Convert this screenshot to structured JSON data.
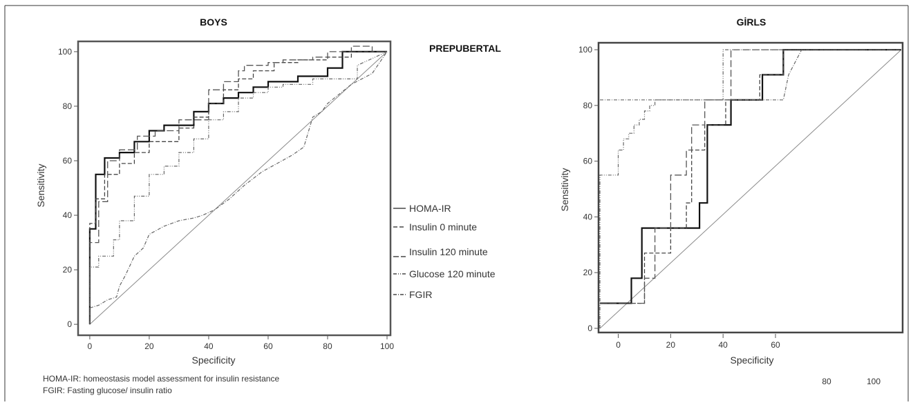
{
  "figure": {
    "center_label": "PREPUBERTAL",
    "footnotes": [
      "HOMA-IR: homeostasis model assessment for insulin resistance",
      "FGIR: Fasting glucose/ insulin ratio"
    ],
    "stray_ticks": [
      "80",
      "100"
    ],
    "legend": [
      {
        "label": "HOMA-IR",
        "dash": "solid"
      },
      {
        "label": "Insulin 0 minute",
        "dash": "dashed"
      },
      {
        "label": "Insulin 120 minute",
        "dash": "long-dashed"
      },
      {
        "label": "Glucose 120 minute",
        "dash": "dash-dot-dot"
      },
      {
        "label": "FGIR",
        "dash": "dash-dot"
      }
    ]
  },
  "chart_data": [
    {
      "type": "line",
      "title": "BOYS",
      "xlabel": "Specificity",
      "ylabel": "Sensitivity",
      "xlim": [
        -3,
        100
      ],
      "ylim": [
        -3,
        102
      ],
      "xticks": [
        0,
        20,
        40,
        60,
        80,
        100
      ],
      "yticks": [
        0,
        20,
        40,
        60,
        80,
        100
      ],
      "reference_line": [
        [
          0,
          0
        ],
        [
          100,
          100
        ]
      ],
      "series": [
        {
          "name": "HOMA-IR",
          "color": "#111111",
          "dash": "solid",
          "width": 2.2,
          "x": [
            0,
            0,
            2,
            2,
            5,
            5,
            10,
            10,
            15,
            15,
            20,
            20,
            25,
            25,
            35,
            35,
            40,
            40,
            45,
            45,
            50,
            50,
            55,
            55,
            60,
            60,
            70,
            70,
            80,
            80,
            85,
            85,
            100
          ],
          "y": [
            0,
            35,
            35,
            55,
            55,
            61,
            61,
            63,
            63,
            67,
            67,
            71,
            71,
            73,
            73,
            78,
            78,
            81,
            81,
            83,
            83,
            85,
            85,
            87,
            87,
            89,
            89,
            91,
            91,
            94,
            94,
            100,
            100
          ]
        },
        {
          "name": "Insulin 0 minute",
          "color": "#444444",
          "dash": "dashed",
          "width": 1.3,
          "x": [
            0,
            0,
            2,
            2,
            5,
            5,
            10,
            10,
            15,
            15,
            20,
            20,
            30,
            30,
            35,
            35,
            40,
            40,
            45,
            45,
            50,
            50,
            55,
            55,
            62,
            62,
            70,
            70,
            80,
            80,
            88,
            88,
            100
          ],
          "y": [
            0,
            37,
            37,
            46,
            46,
            55,
            55,
            59,
            59,
            63,
            63,
            67,
            67,
            72,
            72,
            76,
            76,
            81,
            81,
            86,
            86,
            90,
            90,
            93,
            93,
            96,
            96,
            97,
            97,
            98,
            98,
            100,
            100
          ]
        },
        {
          "name": "Insulin 120 minute",
          "color": "#555555",
          "dash": "long-dashed",
          "width": 1.3,
          "x": [
            0,
            0,
            3,
            3,
            6,
            6,
            10,
            10,
            16,
            16,
            22,
            22,
            30,
            30,
            40,
            40,
            45,
            45,
            50,
            50,
            52,
            52,
            60,
            60,
            65,
            65,
            75,
            75,
            80,
            80,
            88,
            88,
            95,
            95,
            100
          ],
          "y": [
            0,
            30,
            30,
            45,
            45,
            60,
            60,
            64,
            64,
            69,
            69,
            71,
            71,
            75,
            75,
            86,
            86,
            89,
            89,
            93,
            93,
            95,
            95,
            96,
            96,
            97,
            97,
            98,
            98,
            100,
            100,
            102,
            102,
            100,
            100
          ]
        },
        {
          "name": "Glucose 120 minute",
          "color": "#666666",
          "dash": "dash-dot-dot",
          "width": 1.2,
          "x": [
            0,
            0,
            3,
            3,
            8,
            8,
            10,
            10,
            15,
            15,
            20,
            20,
            25,
            25,
            30,
            30,
            35,
            35,
            40,
            40,
            45,
            45,
            50,
            50,
            55,
            55,
            60,
            60,
            65,
            65,
            75,
            75,
            90,
            90,
            100
          ],
          "y": [
            0,
            21,
            21,
            25,
            25,
            31,
            31,
            38,
            38,
            47,
            47,
            55,
            55,
            58,
            58,
            63,
            63,
            68,
            68,
            75,
            75,
            78,
            78,
            83,
            83,
            85,
            85,
            87,
            87,
            88,
            88,
            90,
            90,
            95,
            100
          ]
        },
        {
          "name": "FGIR",
          "color": "#666666",
          "dash": "dash-dot",
          "width": 1.2,
          "x": [
            0,
            3,
            6,
            9,
            10,
            12,
            15,
            18,
            20,
            25,
            30,
            35,
            38,
            42,
            47,
            52,
            58,
            63,
            68,
            72,
            75,
            78,
            80,
            88,
            95,
            100
          ],
          "y": [
            6,
            7,
            9,
            10,
            14,
            18,
            25,
            28,
            33,
            36,
            38,
            39,
            40,
            42,
            46,
            51,
            56,
            59,
            62,
            65,
            76,
            78,
            81,
            88,
            92,
            100
          ]
        }
      ]
    },
    {
      "type": "line",
      "title": "GİRLS",
      "xlabel": "Specificity",
      "ylabel": "Sensitivity",
      "xlim": [
        -7,
        108
      ],
      "ylim": [
        -1,
        102
      ],
      "xticks": [
        0,
        20,
        40,
        60
      ],
      "yticks": [
        0,
        20,
        40,
        60,
        80,
        100
      ],
      "reference_line": [
        [
          -7,
          0
        ],
        [
          108,
          100
        ]
      ],
      "series": [
        {
          "name": "HOMA-IR",
          "color": "#111111",
          "dash": "solid",
          "width": 2.2,
          "x": [
            -7,
            5,
            5,
            9,
            9,
            31,
            31,
            34,
            34,
            43,
            43,
            55,
            55,
            63,
            63,
            108
          ],
          "y": [
            9,
            9,
            18,
            18,
            36,
            36,
            45,
            45,
            73,
            73,
            82,
            82,
            91,
            91,
            100,
            100
          ]
        },
        {
          "name": "Insulin 0 minute",
          "color": "#444444",
          "dash": "dashed",
          "width": 1.3,
          "x": [
            -7,
            10,
            10,
            20,
            20,
            26,
            26,
            28,
            28,
            33,
            33,
            41,
            41,
            54,
            54,
            63,
            63,
            108
          ],
          "y": [
            9,
            9,
            27,
            27,
            36,
            36,
            45,
            45,
            64,
            64,
            73,
            73,
            82,
            82,
            91,
            91,
            100,
            100
          ]
        },
        {
          "name": "Insulin 120 minute",
          "color": "#555555",
          "dash": "long-dashed",
          "width": 1.3,
          "x": [
            -7,
            10,
            10,
            14,
            14,
            20,
            20,
            26,
            26,
            28,
            28,
            33,
            33,
            43,
            43,
            108
          ],
          "y": [
            9,
            9,
            18,
            18,
            36,
            36,
            55,
            55,
            64,
            64,
            73,
            73,
            82,
            82,
            100,
            100
          ]
        },
        {
          "name": "Glucose 120 minute",
          "color": "#666666",
          "dash": "dash-dot-dot",
          "width": 1.2,
          "x": [
            -7,
            -7,
            0,
            0,
            2,
            2,
            4,
            4,
            6,
            6,
            8,
            8,
            10,
            10,
            12,
            12,
            14,
            14,
            18,
            18,
            20,
            20,
            40,
            40,
            108
          ],
          "y": [
            0,
            55,
            55,
            64,
            64,
            68,
            68,
            70,
            70,
            73,
            73,
            75,
            75,
            78,
            78,
            80,
            80,
            82,
            82,
            82,
            82,
            82,
            82,
            100,
            100
          ]
        },
        {
          "name": "FGIR",
          "color": "#666666",
          "dash": "dash-dot",
          "width": 1.2,
          "x": [
            -7,
            5,
            8,
            12,
            14,
            18,
            20,
            28,
            30,
            36,
            38,
            46,
            48,
            56,
            58,
            63,
            65,
            70,
            108
          ],
          "y": [
            82,
            82,
            82,
            82,
            82,
            82,
            82,
            82,
            82,
            82,
            82,
            82,
            82,
            82,
            82,
            82,
            91,
            100,
            100
          ]
        }
      ]
    }
  ]
}
